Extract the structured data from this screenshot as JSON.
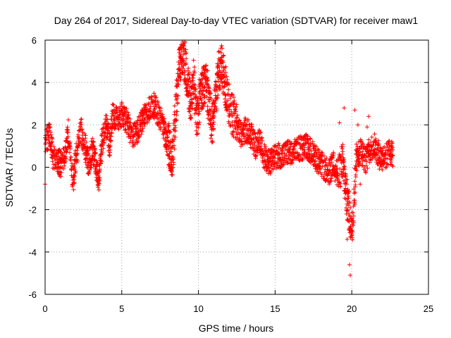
{
  "chart_data": {
    "type": "scatter",
    "title": "Day 264 of 2017, Sidereal Day-to-day VTEC variation (SDTVAR) for receiver maw1",
    "xlabel": "GPS time / hours",
    "ylabel": "SDTVAR / TECUs",
    "xlim": [
      0,
      25
    ],
    "ylim": [
      -6,
      6
    ],
    "xticks": [
      0,
      5,
      10,
      15,
      20,
      25
    ],
    "yticks": [
      -6,
      -4,
      -2,
      0,
      2,
      4,
      6
    ],
    "grid": true,
    "marker": "+",
    "color": "#ff0000",
    "series": [
      {
        "name": "maw1",
        "trend": [
          [
            0.0,
            1.2
          ],
          [
            0.3,
            1.6
          ],
          [
            0.5,
            0.5
          ],
          [
            0.8,
            0.4
          ],
          [
            1.0,
            0.1
          ],
          [
            1.3,
            0.6
          ],
          [
            1.5,
            1.8
          ],
          [
            1.8,
            -0.8
          ],
          [
            2.0,
            0.4
          ],
          [
            2.3,
            1.8
          ],
          [
            2.6,
            1.0
          ],
          [
            2.8,
            0.2
          ],
          [
            3.1,
            0.8
          ],
          [
            3.3,
            0.1
          ],
          [
            3.5,
            -0.6
          ],
          [
            3.7,
            1.2
          ],
          [
            4.0,
            2.0
          ],
          [
            4.2,
            1.0
          ],
          [
            4.4,
            2.4
          ],
          [
            4.7,
            2.2
          ],
          [
            5.0,
            2.5
          ],
          [
            5.3,
            2.2
          ],
          [
            5.6,
            1.6
          ],
          [
            5.9,
            1.5
          ],
          [
            6.2,
            2.0
          ],
          [
            6.5,
            2.5
          ],
          [
            6.8,
            2.8
          ],
          [
            7.1,
            2.9
          ],
          [
            7.4,
            2.5
          ],
          [
            7.7,
            2.0
          ],
          [
            7.9,
            1.3
          ],
          [
            8.1,
            1.0
          ],
          [
            8.3,
            0.3
          ],
          [
            8.5,
            2.5
          ],
          [
            8.7,
            4.5
          ],
          [
            8.9,
            5.5
          ],
          [
            9.1,
            5.0
          ],
          [
            9.3,
            4.0
          ],
          [
            9.5,
            3.0
          ],
          [
            9.7,
            4.2
          ],
          [
            9.9,
            2.0
          ],
          [
            10.1,
            3.5
          ],
          [
            10.3,
            3.8
          ],
          [
            10.5,
            4.0
          ],
          [
            10.7,
            2.8
          ],
          [
            10.9,
            2.0
          ],
          [
            11.1,
            3.0
          ],
          [
            11.3,
            4.5
          ],
          [
            11.5,
            4.8
          ],
          [
            11.7,
            4.0
          ],
          [
            11.9,
            3.2
          ],
          [
            12.2,
            2.5
          ],
          [
            12.5,
            2.0
          ],
          [
            12.8,
            1.5
          ],
          [
            13.1,
            1.8
          ],
          [
            13.4,
            1.5
          ],
          [
            13.7,
            1.0
          ],
          [
            14.0,
            1.2
          ],
          [
            14.3,
            0.5
          ],
          [
            14.6,
            0.2
          ],
          [
            14.9,
            0.4
          ],
          [
            15.2,
            0.6
          ],
          [
            15.5,
            0.5
          ],
          [
            15.8,
            0.7
          ],
          [
            16.1,
            0.6
          ],
          [
            16.4,
            0.8
          ],
          [
            16.7,
            0.9
          ],
          [
            17.0,
            1.0
          ],
          [
            17.3,
            0.8
          ],
          [
            17.6,
            0.5
          ],
          [
            17.9,
            0.2
          ],
          [
            18.2,
            0.0
          ],
          [
            18.5,
            -0.3
          ],
          [
            18.8,
            0.2
          ],
          [
            19.1,
            -0.5
          ],
          [
            19.4,
            0.4
          ],
          [
            19.6,
            -1.2
          ],
          [
            19.8,
            -2.0
          ],
          [
            20.0,
            -3.0
          ],
          [
            20.3,
            0.5
          ],
          [
            20.6,
            0.8
          ],
          [
            20.9,
            0.3
          ],
          [
            21.2,
            0.9
          ],
          [
            21.5,
            1.0
          ],
          [
            21.8,
            0.5
          ],
          [
            22.1,
            0.4
          ],
          [
            22.4,
            0.7
          ],
          [
            22.7,
            0.6
          ]
        ],
        "outliers": [
          [
            0.0,
            -0.8
          ],
          [
            19.7,
            -3.4
          ],
          [
            19.85,
            -4.6
          ],
          [
            19.9,
            -5.1
          ],
          [
            20.2,
            2.7
          ],
          [
            20.4,
            2.0
          ],
          [
            20.45,
            1.2
          ],
          [
            21.1,
            2.4
          ],
          [
            21.0,
            1.9
          ],
          [
            20.55,
            -0.8
          ],
          [
            19.5,
            2.8
          ],
          [
            19.2,
            2.1
          ]
        ]
      }
    ]
  }
}
